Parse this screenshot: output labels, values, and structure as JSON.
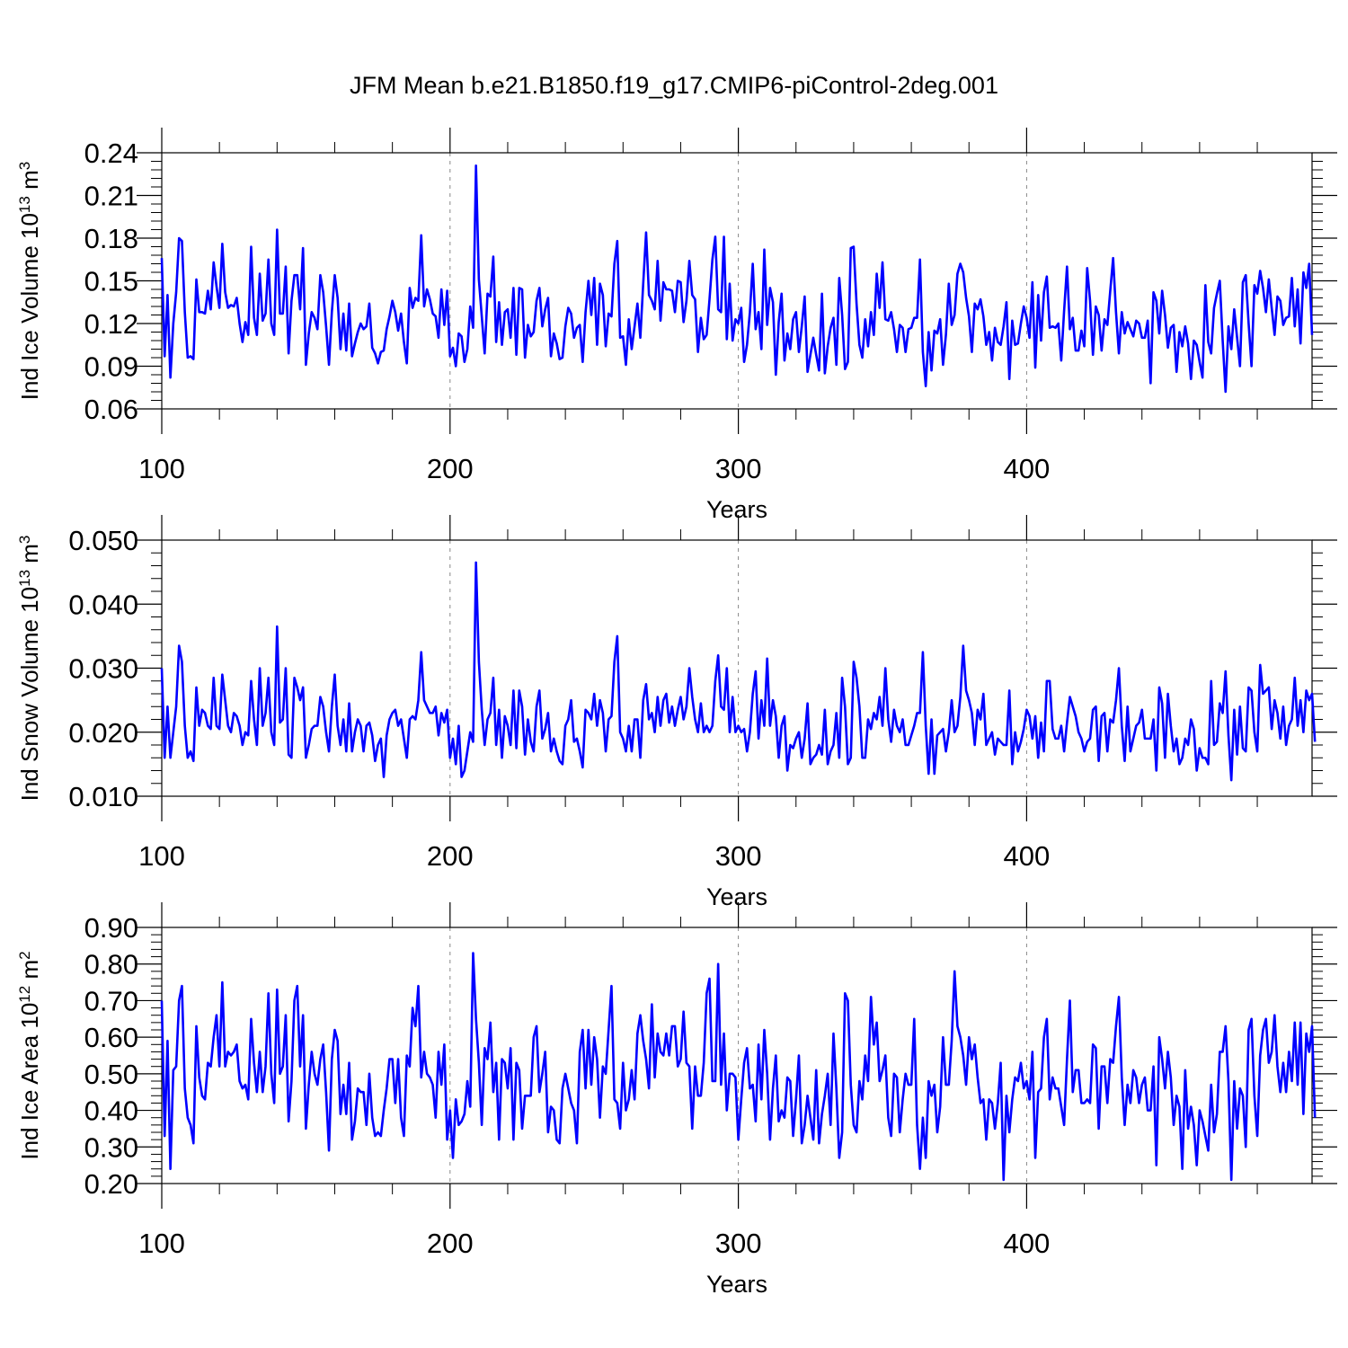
{
  "title": "JFM Mean b.e21.B1850.f19_g17.CMIP6-piControl-2deg.001",
  "colors": {
    "series": "#0000ff",
    "axis": "#000000",
    "grid": "#888888"
  },
  "chart_data": [
    {
      "type": "line",
      "xlabel": "Years",
      "ylabel": "Ind Ice Volume",
      "ylabel_unit_base": "10",
      "ylabel_unit_exp": "13",
      "ylabel_unit_sym": "m",
      "ylabel_unit_sym_exp": "3",
      "xlim": [
        100,
        499
      ],
      "ylim": [
        0.06,
        0.24
      ],
      "xticks": [
        100,
        200,
        300,
        400
      ],
      "yticks": [
        "0.06",
        "0.09",
        "0.12",
        "0.15",
        "0.18",
        "0.21",
        "0.24"
      ],
      "grid": "vertical dashed at major x ticks",
      "x_start": 100,
      "values": [
        0.166,
        0.097,
        0.14,
        0.082,
        0.12,
        0.142,
        0.18,
        0.178,
        0.128,
        0.096,
        0.097,
        0.095,
        0.151,
        0.128,
        0.128,
        0.127,
        0.143,
        0.13,
        0.163,
        0.146,
        0.131,
        0.176,
        0.142,
        0.131,
        0.133,
        0.132,
        0.138,
        0.12,
        0.107,
        0.121,
        0.112,
        0.174,
        0.124,
        0.112,
        0.155,
        0.122,
        0.127,
        0.165,
        0.12,
        0.112,
        0.186,
        0.127,
        0.127,
        0.16,
        0.099,
        0.136,
        0.154,
        0.154,
        0.13,
        0.173,
        0.091,
        0.113,
        0.128,
        0.124,
        0.116,
        0.154,
        0.142,
        0.118,
        0.091,
        0.128,
        0.154,
        0.138,
        0.102,
        0.127,
        0.101,
        0.134,
        0.097,
        0.106,
        0.114,
        0.12,
        0.116,
        0.118,
        0.134,
        0.103,
        0.099,
        0.092,
        0.1,
        0.101,
        0.116,
        0.125,
        0.136,
        0.128,
        0.115,
        0.127,
        0.107,
        0.092,
        0.145,
        0.131,
        0.138,
        0.136,
        0.182,
        0.132,
        0.144,
        0.137,
        0.127,
        0.125,
        0.11,
        0.144,
        0.119,
        0.143,
        0.097,
        0.103,
        0.09,
        0.113,
        0.111,
        0.093,
        0.102,
        0.132,
        0.117,
        0.231,
        0.151,
        0.125,
        0.099,
        0.141,
        0.139,
        0.167,
        0.107,
        0.135,
        0.105,
        0.128,
        0.13,
        0.11,
        0.145,
        0.098,
        0.145,
        0.144,
        0.096,
        0.119,
        0.111,
        0.114,
        0.136,
        0.145,
        0.118,
        0.13,
        0.138,
        0.097,
        0.113,
        0.106,
        0.095,
        0.096,
        0.118,
        0.131,
        0.127,
        0.11,
        0.117,
        0.119,
        0.093,
        0.128,
        0.15,
        0.126,
        0.152,
        0.105,
        0.148,
        0.14,
        0.104,
        0.127,
        0.125,
        0.162,
        0.178,
        0.11,
        0.111,
        0.091,
        0.123,
        0.102,
        0.118,
        0.134,
        0.11,
        0.148,
        0.184,
        0.14,
        0.136,
        0.13,
        0.164,
        0.122,
        0.149,
        0.144,
        0.144,
        0.143,
        0.128,
        0.15,
        0.149,
        0.121,
        0.136,
        0.164,
        0.14,
        0.137,
        0.1,
        0.124,
        0.109,
        0.112,
        0.137,
        0.165,
        0.181,
        0.13,
        0.128,
        0.181,
        0.109,
        0.148,
        0.108,
        0.123,
        0.12,
        0.131,
        0.093,
        0.105,
        0.128,
        0.162,
        0.116,
        0.128,
        0.102,
        0.172,
        0.119,
        0.145,
        0.135,
        0.084,
        0.121,
        0.141,
        0.094,
        0.113,
        0.102,
        0.123,
        0.128,
        0.1,
        0.118,
        0.139,
        0.086,
        0.098,
        0.11,
        0.098,
        0.087,
        0.141,
        0.085,
        0.104,
        0.117,
        0.124,
        0.091,
        0.152,
        0.126,
        0.088,
        0.093,
        0.173,
        0.174,
        0.134,
        0.105,
        0.096,
        0.123,
        0.104,
        0.128,
        0.112,
        0.155,
        0.131,
        0.163,
        0.123,
        0.122,
        0.128,
        0.116,
        0.1,
        0.119,
        0.117,
        0.1,
        0.116,
        0.117,
        0.124,
        0.124,
        0.165,
        0.1,
        0.076,
        0.114,
        0.087,
        0.115,
        0.113,
        0.123,
        0.091,
        0.112,
        0.148,
        0.119,
        0.126,
        0.155,
        0.162,
        0.156,
        0.138,
        0.125,
        0.1,
        0.134,
        0.13,
        0.137,
        0.125,
        0.105,
        0.114,
        0.094,
        0.117,
        0.107,
        0.105,
        0.118,
        0.135,
        0.081,
        0.122,
        0.105,
        0.106,
        0.12,
        0.132,
        0.124,
        0.11,
        0.149,
        0.089,
        0.14,
        0.108,
        0.142,
        0.153,
        0.117,
        0.118,
        0.117,
        0.12,
        0.094,
        0.129,
        0.16,
        0.116,
        0.124,
        0.101,
        0.101,
        0.115,
        0.104,
        0.159,
        0.136,
        0.098,
        0.132,
        0.126,
        0.101,
        0.123,
        0.119,
        0.143,
        0.166,
        0.128,
        0.099,
        0.128,
        0.113,
        0.121,
        0.116,
        0.111,
        0.122,
        0.12,
        0.11,
        0.11,
        0.122,
        0.078,
        0.142,
        0.136,
        0.113,
        0.143,
        0.126,
        0.103,
        0.117,
        0.119,
        0.086,
        0.114,
        0.104,
        0.118,
        0.106,
        0.081,
        0.108,
        0.105,
        0.093,
        0.082,
        0.147,
        0.107,
        0.099,
        0.131,
        0.141,
        0.15,
        0.108,
        0.072,
        0.118,
        0.102,
        0.13,
        0.11,
        0.09,
        0.149,
        0.154,
        0.12,
        0.09,
        0.147,
        0.141,
        0.157,
        0.145,
        0.128,
        0.151,
        0.131,
        0.112,
        0.139,
        0.136,
        0.119,
        0.124,
        0.125,
        0.152,
        0.118,
        0.144,
        0.106,
        0.156,
        0.145,
        0.162,
        0.112
      ]
    },
    {
      "type": "line",
      "xlabel": "Years",
      "ylabel": "Ind Snow Volume",
      "ylabel_unit_base": "10",
      "ylabel_unit_exp": "13",
      "ylabel_unit_sym": "m",
      "ylabel_unit_sym_exp": "3",
      "xlim": [
        100,
        499
      ],
      "ylim": [
        0.01,
        0.05
      ],
      "xticks": [
        100,
        200,
        300,
        400
      ],
      "yticks": [
        "0.010",
        "0.020",
        "0.030",
        "0.040",
        "0.050"
      ],
      "grid": "vertical dashed at major x ticks",
      "x_start": 100,
      "values": [
        0.03,
        0.016,
        0.024,
        0.016,
        0.02,
        0.024,
        0.0335,
        0.031,
        0.021,
        0.016,
        0.017,
        0.0155,
        0.027,
        0.021,
        0.0235,
        0.023,
        0.021,
        0.0205,
        0.0285,
        0.021,
        0.0205,
        0.029,
        0.025,
        0.021,
        0.02,
        0.023,
        0.0225,
        0.021,
        0.018,
        0.02,
        0.0195,
        0.028,
        0.022,
        0.018,
        0.03,
        0.021,
        0.023,
        0.0285,
        0.02,
        0.018,
        0.0365,
        0.0215,
        0.022,
        0.03,
        0.0165,
        0.016,
        0.0285,
        0.027,
        0.025,
        0.027,
        0.016,
        0.018,
        0.0205,
        0.021,
        0.021,
        0.0255,
        0.024,
        0.02,
        0.017,
        0.024,
        0.029,
        0.021,
        0.018,
        0.022,
        0.017,
        0.0245,
        0.017,
        0.02,
        0.022,
        0.021,
        0.017,
        0.021,
        0.0215,
        0.0195,
        0.0155,
        0.018,
        0.019,
        0.013,
        0.0195,
        0.022,
        0.023,
        0.0235,
        0.021,
        0.022,
        0.019,
        0.016,
        0.022,
        0.0225,
        0.022,
        0.025,
        0.0325,
        0.025,
        0.024,
        0.023,
        0.023,
        0.024,
        0.0195,
        0.023,
        0.0215,
        0.0235,
        0.016,
        0.019,
        0.015,
        0.021,
        0.013,
        0.014,
        0.017,
        0.02,
        0.0185,
        0.0465,
        0.031,
        0.0235,
        0.018,
        0.022,
        0.023,
        0.0285,
        0.018,
        0.0235,
        0.016,
        0.0225,
        0.021,
        0.018,
        0.0265,
        0.0175,
        0.0265,
        0.024,
        0.0165,
        0.022,
        0.0185,
        0.017,
        0.024,
        0.0265,
        0.019,
        0.0205,
        0.023,
        0.017,
        0.019,
        0.017,
        0.0155,
        0.015,
        0.021,
        0.022,
        0.025,
        0.0185,
        0.019,
        0.017,
        0.0145,
        0.0235,
        0.023,
        0.022,
        0.026,
        0.021,
        0.025,
        0.023,
        0.017,
        0.022,
        0.0225,
        0.031,
        0.035,
        0.02,
        0.019,
        0.017,
        0.021,
        0.017,
        0.022,
        0.022,
        0.016,
        0.025,
        0.0275,
        0.022,
        0.023,
        0.02,
        0.0255,
        0.021,
        0.025,
        0.026,
        0.0215,
        0.024,
        0.021,
        0.0235,
        0.0255,
        0.022,
        0.024,
        0.03,
        0.0255,
        0.022,
        0.02,
        0.0245,
        0.02,
        0.021,
        0.02,
        0.021,
        0.028,
        0.032,
        0.024,
        0.0235,
        0.03,
        0.02,
        0.0255,
        0.02,
        0.021,
        0.02,
        0.0205,
        0.017,
        0.02,
        0.026,
        0.0295,
        0.019,
        0.025,
        0.021,
        0.0315,
        0.021,
        0.025,
        0.0225,
        0.016,
        0.021,
        0.0225,
        0.014,
        0.018,
        0.0175,
        0.019,
        0.02,
        0.016,
        0.019,
        0.0245,
        0.015,
        0.016,
        0.0165,
        0.018,
        0.0165,
        0.0235,
        0.015,
        0.017,
        0.018,
        0.023,
        0.016,
        0.0285,
        0.024,
        0.015,
        0.016,
        0.031,
        0.0285,
        0.024,
        0.016,
        0.016,
        0.022,
        0.0205,
        0.023,
        0.022,
        0.0255,
        0.021,
        0.03,
        0.022,
        0.0185,
        0.0235,
        0.021,
        0.02,
        0.022,
        0.018,
        0.018,
        0.0195,
        0.021,
        0.023,
        0.023,
        0.0325,
        0.021,
        0.0135,
        0.022,
        0.0135,
        0.0195,
        0.02,
        0.0205,
        0.017,
        0.02,
        0.025,
        0.02,
        0.021,
        0.0255,
        0.0335,
        0.0265,
        0.025,
        0.023,
        0.018,
        0.0235,
        0.022,
        0.026,
        0.018,
        0.019,
        0.02,
        0.0165,
        0.019,
        0.0185,
        0.018,
        0.018,
        0.0265,
        0.015,
        0.02,
        0.017,
        0.0185,
        0.0205,
        0.0235,
        0.0225,
        0.019,
        0.0225,
        0.016,
        0.0215,
        0.017,
        0.028,
        0.028,
        0.0205,
        0.019,
        0.019,
        0.021,
        0.017,
        0.0215,
        0.0255,
        0.024,
        0.0225,
        0.02,
        0.019,
        0.017,
        0.0185,
        0.019,
        0.0235,
        0.024,
        0.0155,
        0.0225,
        0.023,
        0.017,
        0.022,
        0.0215,
        0.025,
        0.03,
        0.021,
        0.0155,
        0.024,
        0.017,
        0.019,
        0.021,
        0.0215,
        0.0235,
        0.019,
        0.019,
        0.019,
        0.022,
        0.014,
        0.027,
        0.0245,
        0.016,
        0.026,
        0.021,
        0.017,
        0.019,
        0.015,
        0.016,
        0.019,
        0.018,
        0.022,
        0.0205,
        0.014,
        0.0175,
        0.016,
        0.016,
        0.015,
        0.028,
        0.018,
        0.0185,
        0.0245,
        0.023,
        0.0295,
        0.0195,
        0.0125,
        0.0235,
        0.0165,
        0.024,
        0.0175,
        0.017,
        0.027,
        0.0265,
        0.02,
        0.017,
        0.0305,
        0.026,
        0.0265,
        0.027,
        0.0205,
        0.025,
        0.023,
        0.019,
        0.024,
        0.018,
        0.021,
        0.022,
        0.0285,
        0.021,
        0.025,
        0.02,
        0.0265,
        0.025,
        0.026,
        0.0185
      ]
    },
    {
      "type": "line",
      "xlabel": "Years",
      "ylabel": "Ind Ice Area",
      "ylabel_unit_base": "10",
      "ylabel_unit_exp": "12",
      "ylabel_unit_sym": "m",
      "ylabel_unit_sym_exp": "2",
      "xlim": [
        100,
        499
      ],
      "ylim": [
        0.2,
        0.9
      ],
      "xticks": [
        100,
        200,
        300,
        400
      ],
      "yticks": [
        "0.20",
        "0.30",
        "0.40",
        "0.50",
        "0.60",
        "0.70",
        "0.80",
        "0.90"
      ],
      "grid": "vertical dashed at major x ticks",
      "x_start": 100,
      "values": [
        0.7,
        0.33,
        0.59,
        0.24,
        0.51,
        0.52,
        0.7,
        0.74,
        0.46,
        0.38,
        0.36,
        0.31,
        0.63,
        0.49,
        0.44,
        0.43,
        0.53,
        0.52,
        0.6,
        0.66,
        0.52,
        0.75,
        0.52,
        0.56,
        0.55,
        0.56,
        0.58,
        0.48,
        0.46,
        0.47,
        0.43,
        0.65,
        0.53,
        0.45,
        0.56,
        0.45,
        0.52,
        0.72,
        0.5,
        0.42,
        0.73,
        0.5,
        0.52,
        0.66,
        0.37,
        0.48,
        0.7,
        0.74,
        0.52,
        0.66,
        0.35,
        0.47,
        0.56,
        0.5,
        0.47,
        0.54,
        0.58,
        0.45,
        0.29,
        0.54,
        0.62,
        0.59,
        0.39,
        0.47,
        0.39,
        0.53,
        0.32,
        0.37,
        0.46,
        0.45,
        0.45,
        0.36,
        0.5,
        0.38,
        0.33,
        0.34,
        0.33,
        0.4,
        0.46,
        0.54,
        0.54,
        0.42,
        0.54,
        0.38,
        0.33,
        0.55,
        0.52,
        0.68,
        0.63,
        0.74,
        0.49,
        0.56,
        0.5,
        0.49,
        0.47,
        0.38,
        0.56,
        0.47,
        0.58,
        0.32,
        0.4,
        0.27,
        0.43,
        0.36,
        0.37,
        0.39,
        0.48,
        0.41,
        0.83,
        0.65,
        0.53,
        0.36,
        0.57,
        0.54,
        0.64,
        0.45,
        0.53,
        0.32,
        0.54,
        0.53,
        0.46,
        0.57,
        0.32,
        0.53,
        0.51,
        0.35,
        0.44,
        0.44,
        0.44,
        0.6,
        0.63,
        0.45,
        0.5,
        0.56,
        0.34,
        0.41,
        0.4,
        0.32,
        0.31,
        0.46,
        0.5,
        0.46,
        0.42,
        0.4,
        0.31,
        0.56,
        0.62,
        0.46,
        0.62,
        0.47,
        0.6,
        0.54,
        0.38,
        0.52,
        0.5,
        0.62,
        0.74,
        0.43,
        0.42,
        0.35,
        0.53,
        0.4,
        0.43,
        0.51,
        0.43,
        0.61,
        0.66,
        0.59,
        0.54,
        0.46,
        0.69,
        0.49,
        0.61,
        0.56,
        0.55,
        0.61,
        0.55,
        0.63,
        0.63,
        0.52,
        0.54,
        0.67,
        0.53,
        0.52,
        0.35,
        0.52,
        0.44,
        0.44,
        0.53,
        0.72,
        0.76,
        0.48,
        0.48,
        0.8,
        0.47,
        0.61,
        0.4,
        0.5,
        0.5,
        0.49,
        0.32,
        0.43,
        0.53,
        0.57,
        0.46,
        0.47,
        0.37,
        0.58,
        0.43,
        0.62,
        0.5,
        0.32,
        0.46,
        0.55,
        0.37,
        0.4,
        0.38,
        0.49,
        0.48,
        0.33,
        0.43,
        0.55,
        0.31,
        0.36,
        0.44,
        0.38,
        0.32,
        0.51,
        0.31,
        0.39,
        0.44,
        0.5,
        0.36,
        0.61,
        0.46,
        0.27,
        0.34,
        0.72,
        0.7,
        0.47,
        0.36,
        0.34,
        0.48,
        0.43,
        0.55,
        0.48,
        0.71,
        0.58,
        0.64,
        0.48,
        0.51,
        0.55,
        0.38,
        0.33,
        0.5,
        0.49,
        0.34,
        0.43,
        0.5,
        0.47,
        0.47,
        0.65,
        0.36,
        0.24,
        0.38,
        0.27,
        0.48,
        0.44,
        0.47,
        0.34,
        0.41,
        0.6,
        0.47,
        0.47,
        0.59,
        0.78,
        0.63,
        0.6,
        0.55,
        0.47,
        0.6,
        0.54,
        0.58,
        0.49,
        0.42,
        0.43,
        0.32,
        0.43,
        0.42,
        0.35,
        0.42,
        0.53,
        0.21,
        0.44,
        0.34,
        0.43,
        0.49,
        0.48,
        0.53,
        0.46,
        0.48,
        0.43,
        0.56,
        0.27,
        0.45,
        0.46,
        0.6,
        0.65,
        0.43,
        0.49,
        0.46,
        0.46,
        0.41,
        0.36,
        0.54,
        0.7,
        0.45,
        0.51,
        0.51,
        0.42,
        0.42,
        0.43,
        0.42,
        0.58,
        0.57,
        0.35,
        0.52,
        0.52,
        0.42,
        0.54,
        0.53,
        0.63,
        0.71,
        0.49,
        0.36,
        0.47,
        0.42,
        0.51,
        0.49,
        0.42,
        0.47,
        0.49,
        0.4,
        0.4,
        0.52,
        0.25,
        0.6,
        0.54,
        0.46,
        0.56,
        0.49,
        0.36,
        0.44,
        0.41,
        0.24,
        0.51,
        0.35,
        0.41,
        0.36,
        0.25,
        0.4,
        0.37,
        0.33,
        0.29,
        0.47,
        0.34,
        0.39,
        0.56,
        0.56,
        0.63,
        0.48,
        0.21,
        0.48,
        0.35,
        0.46,
        0.44,
        0.3,
        0.62,
        0.65,
        0.44,
        0.33,
        0.55,
        0.62,
        0.65,
        0.53,
        0.56,
        0.66,
        0.52,
        0.45,
        0.53,
        0.45,
        0.56,
        0.48,
        0.64,
        0.47,
        0.64,
        0.39,
        0.61,
        0.56,
        0.63,
        0.38
      ]
    }
  ]
}
